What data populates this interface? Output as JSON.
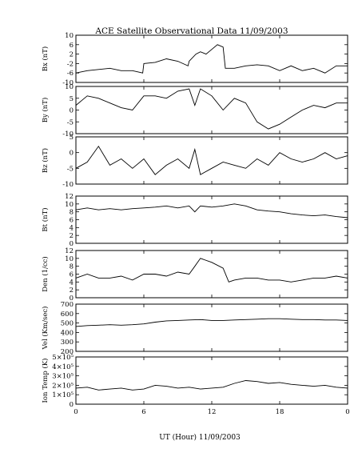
{
  "chart_data": {
    "type": "line",
    "title": "ACE Satellite Observational Data   11/09/2003",
    "xlabel": "UT (Hour)   11/09/2003",
    "x_ticks": [
      "0",
      "6",
      "12",
      "18",
      "0"
    ],
    "xlim": [
      0,
      24
    ],
    "panels": [
      {
        "ylabel": "Bx (nT)",
        "ylim": [
          -10,
          10
        ],
        "y_ticks": [
          "-10",
          "-6",
          "-2",
          "2",
          "6",
          "10"
        ],
        "x": [
          0,
          1,
          2,
          3,
          4,
          5,
          5.9,
          6,
          7,
          8,
          9,
          9.9,
          10,
          10.6,
          11,
          11.5,
          12,
          12.5,
          13,
          13.2,
          14,
          15,
          16,
          17,
          18,
          19,
          20,
          21,
          22,
          23,
          24
        ],
        "y": [
          -6,
          -5,
          -4.5,
          -4,
          -5,
          -5,
          -6,
          -2,
          -1.5,
          0,
          -1,
          -3,
          -1,
          2,
          3,
          2,
          4,
          6,
          5,
          -4,
          -4,
          -3,
          -2.5,
          -3,
          -5,
          -3,
          -5,
          -4,
          -6,
          -3,
          -3
        ]
      },
      {
        "ylabel": "By (nT)",
        "ylim": [
          -10,
          10
        ],
        "y_ticks": [
          "-10",
          "-5",
          "0",
          "5",
          "10"
        ],
        "x": [
          0,
          0.5,
          1,
          2,
          3,
          4,
          5,
          6,
          7,
          8,
          9,
          10,
          10.5,
          11,
          12,
          13,
          14,
          15,
          16,
          17,
          18,
          19,
          20,
          21,
          22,
          23,
          24
        ],
        "y": [
          2,
          4,
          6,
          5,
          3,
          1,
          0,
          6,
          6,
          5,
          8,
          9,
          2,
          9,
          6,
          0,
          5,
          3,
          -5,
          -8,
          -6,
          -3,
          0,
          2,
          1,
          3,
          3
        ]
      },
      {
        "ylabel": "Bz (nT)",
        "ylim": [
          -10,
          5
        ],
        "y_ticks": [
          "-10",
          "-5",
          "0",
          "5"
        ],
        "x": [
          0,
          1,
          2,
          3,
          4,
          5,
          6,
          7,
          8,
          9,
          10,
          10.5,
          11,
          12,
          13,
          14,
          15,
          16,
          17,
          18,
          19,
          20,
          21,
          22,
          23,
          24
        ],
        "y": [
          -5,
          -3,
          2,
          -4,
          -2,
          -5,
          -2,
          -7,
          -4,
          -2,
          -5,
          1,
          -7,
          -5,
          -3,
          -4,
          -5,
          -2,
          -4,
          0,
          -2,
          -3,
          -2,
          0,
          -2,
          -1
        ]
      },
      {
        "ylabel": "Bt (nT)",
        "ylim": [
          0,
          12
        ],
        "y_ticks": [
          "0",
          "2",
          "4",
          "6",
          "8",
          "10",
          "12"
        ],
        "x": [
          0,
          1,
          2,
          3,
          4,
          5,
          6,
          7,
          8,
          9,
          10,
          10.5,
          11,
          12,
          13,
          14,
          15,
          16,
          17,
          18,
          19,
          20,
          21,
          22,
          23,
          24
        ],
        "y": [
          8.5,
          9,
          8.5,
          8.8,
          8.5,
          8.8,
          9,
          9.2,
          9.5,
          9,
          9.5,
          8,
          9.5,
          9.2,
          9.5,
          10,
          9.5,
          8.5,
          8.2,
          8,
          7.5,
          7.2,
          7,
          7.2,
          6.8,
          6.5
        ]
      },
      {
        "ylabel": "Den (1/cc)",
        "ylim": [
          0,
          12
        ],
        "y_ticks": [
          "0",
          "2",
          "4",
          "6",
          "8",
          "10",
          "12"
        ],
        "x": [
          0,
          1,
          2,
          3,
          4,
          5,
          6,
          7,
          8,
          9,
          10,
          10.5,
          11,
          12,
          13,
          13.5,
          14,
          15,
          16,
          17,
          18,
          19,
          20,
          21,
          22,
          23,
          24
        ],
        "y": [
          5,
          6,
          5,
          5,
          5.5,
          4.5,
          6,
          6,
          5.5,
          6.5,
          6,
          8,
          10,
          9,
          7.5,
          4,
          4.5,
          5,
          5,
          4.5,
          4.5,
          4,
          4.5,
          5,
          5,
          5.5,
          5
        ]
      },
      {
        "ylabel": "Vel (Km/sec)",
        "ylim": [
          200,
          750
        ],
        "y_ticks": [
          "200",
          "300",
          "400",
          "500",
          "600",
          "700"
        ],
        "x": [
          0,
          1,
          2,
          3,
          4,
          5,
          6,
          7,
          8,
          9,
          10,
          11,
          12,
          13,
          14,
          15,
          16,
          17,
          18,
          19,
          20,
          21,
          22,
          23,
          24
        ],
        "y": [
          490,
          500,
          505,
          510,
          505,
          510,
          520,
          540,
          555,
          560,
          565,
          570,
          560,
          560,
          565,
          570,
          575,
          580,
          580,
          575,
          570,
          570,
          565,
          565,
          560
        ]
      },
      {
        "ylabel": "Ion Temp (K)",
        "ylim": [
          0,
          500000
        ],
        "y_ticks": [
          "0",
          "1×10⁵",
          "2×10⁵",
          "3×10⁵",
          "4×10⁵",
          "5×10⁵"
        ],
        "x": [
          0,
          1,
          2,
          3,
          4,
          5,
          6,
          7,
          8,
          9,
          10,
          11,
          12,
          13,
          14,
          15,
          16,
          17,
          18,
          19,
          20,
          21,
          22,
          23,
          24
        ],
        "y": [
          170000,
          180000,
          150000,
          160000,
          170000,
          150000,
          160000,
          200000,
          190000,
          170000,
          180000,
          160000,
          170000,
          180000,
          220000,
          250000,
          240000,
          220000,
          230000,
          210000,
          200000,
          190000,
          200000,
          180000,
          170000
        ]
      }
    ]
  }
}
